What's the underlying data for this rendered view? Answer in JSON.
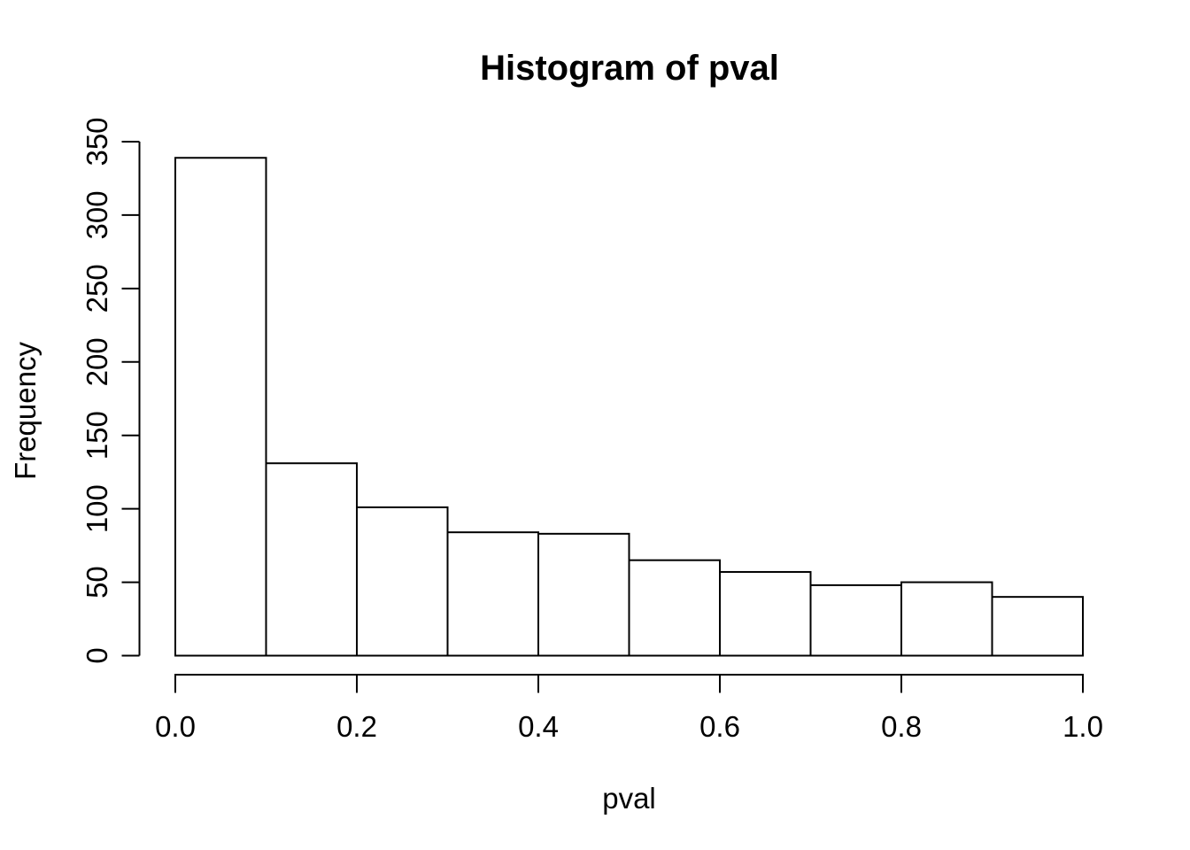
{
  "figure": {
    "background": "#ffffff"
  },
  "chart_data": {
    "type": "histogram",
    "title": "Histogram of pval",
    "xlabel": "pval",
    "ylabel": "Frequency",
    "bin_width": 0.1,
    "bin_edges": [
      0.0,
      0.1,
      0.2,
      0.3,
      0.4,
      0.5,
      0.6,
      0.7,
      0.8,
      0.9,
      1.0
    ],
    "counts": [
      339,
      131,
      101,
      84,
      83,
      65,
      57,
      48,
      50,
      40
    ],
    "xlim": [
      0.0,
      1.0
    ],
    "ylim": [
      0,
      350
    ],
    "x_ticks": [
      {
        "value": 0.0,
        "label": "0.0"
      },
      {
        "value": 0.2,
        "label": "0.2"
      },
      {
        "value": 0.4,
        "label": "0.4"
      },
      {
        "value": 0.6,
        "label": "0.6"
      },
      {
        "value": 0.8,
        "label": "0.8"
      },
      {
        "value": 1.0,
        "label": "1.0"
      }
    ],
    "y_ticks": [
      {
        "value": 0,
        "label": "0"
      },
      {
        "value": 50,
        "label": "50"
      },
      {
        "value": 100,
        "label": "100"
      },
      {
        "value": 150,
        "label": "150"
      },
      {
        "value": 200,
        "label": "200"
      },
      {
        "value": 250,
        "label": "250"
      },
      {
        "value": 300,
        "label": "300"
      },
      {
        "value": 350,
        "label": "350"
      }
    ],
    "grid": false,
    "legend": false,
    "bar_fill": "#ffffff",
    "bar_stroke": "#000000",
    "axis_color": "#000000",
    "text_color": "#000000",
    "background": "#ffffff"
  }
}
